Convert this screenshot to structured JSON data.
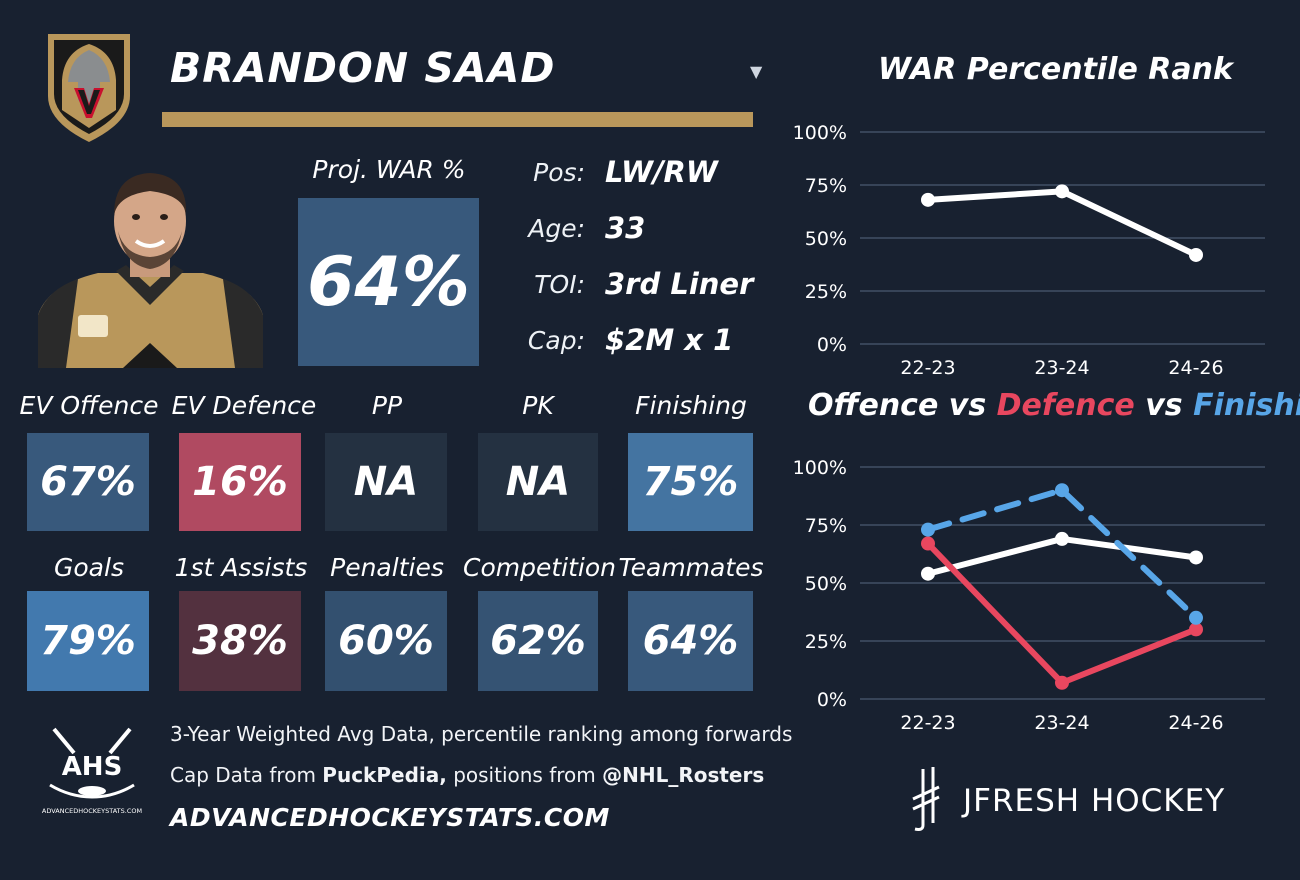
{
  "header": {
    "player_name": "BRANDON SAAD",
    "dropdown_glyph": "▼",
    "team_logo_icon": "vegas-golden-knights-helmet-logo",
    "accent_color": "#b9975b"
  },
  "projection": {
    "label": "Proj. WAR %",
    "value": "64%"
  },
  "info": {
    "pos_label": "Pos:",
    "pos_value": "LW/RW",
    "age_label": "Age:",
    "age_value": "33",
    "toi_label": "TOI:",
    "toi_value": "3rd Liner",
    "cap_label": "Cap:",
    "cap_value": "$2M x 1"
  },
  "metrics": [
    {
      "label": "EV Offence",
      "value": "67%",
      "color": "#38597c"
    },
    {
      "label": "EV Defence",
      "value": "16%",
      "color": "#b04a61"
    },
    {
      "label": "PP",
      "value": "NA",
      "color": "#243141"
    },
    {
      "label": "PK",
      "value": "NA",
      "color": "#243141"
    },
    {
      "label": "Finishing",
      "value": "75%",
      "color": "#4474a1"
    },
    {
      "label": "Goals",
      "value": "79%",
      "color": "#4279ae"
    },
    {
      "label": "1st Assists",
      "value": "38%",
      "color": "#53313f"
    },
    {
      "label": "Penalties",
      "value": "60%",
      "color": "#33506f"
    },
    {
      "label": "Competition",
      "value": "62%",
      "color": "#355373"
    },
    {
      "label": "Teammates",
      "value": "64%",
      "color": "#38597c"
    }
  ],
  "footer": {
    "line1": "3-Year Weighted Avg Data, percentile ranking among forwards",
    "line2_prefix": "Cap Data from ",
    "line2_source1": "PuckPedia,",
    "line2_middle": " positions from ",
    "line2_source2": "@NHL_Rosters",
    "site": "ADVANCEDHOCKEYSTATS.COM",
    "ahs_logo_text": "AHS",
    "ahs_logo_small": "ADVANCEDHOCKEYSTATS.COM",
    "brand": "JFRESH HOCKEY"
  },
  "chart_titles": {
    "war": "WAR Percentile Rank",
    "ovd_offence": "Offence",
    "ovd_vs1": " vs ",
    "ovd_defence": "Defence",
    "ovd_vs2": " vs ",
    "ovd_finishing": "Finishing"
  },
  "chart_data": [
    {
      "type": "line",
      "title": "WAR Percentile Rank",
      "categories": [
        "22-23",
        "23-24",
        "24-26"
      ],
      "yticks": [
        "100%",
        "75%",
        "50%",
        "25%",
        "0%"
      ],
      "ylim": [
        0,
        100
      ],
      "grid": true,
      "series": [
        {
          "values": [
            68,
            72,
            42
          ],
          "color": "#ffffff",
          "dash": false
        }
      ]
    },
    {
      "type": "line",
      "title": "Offence vs Defence vs Finishing",
      "categories": [
        "22-23",
        "23-24",
        "24-26"
      ],
      "yticks": [
        "100%",
        "75%",
        "50%",
        "25%",
        "0%"
      ],
      "ylim": [
        0,
        100
      ],
      "grid": true,
      "series": [
        {
          "name": "Offence",
          "values": [
            54,
            69,
            61
          ],
          "color": "#ffffff",
          "dash": false
        },
        {
          "name": "Defence",
          "values": [
            67,
            7,
            30
          ],
          "color": "#e8475f",
          "dash": false
        },
        {
          "name": "Finishing",
          "values": [
            73,
            90,
            35
          ],
          "color": "#58a6e8",
          "dash": true
        }
      ]
    }
  ]
}
